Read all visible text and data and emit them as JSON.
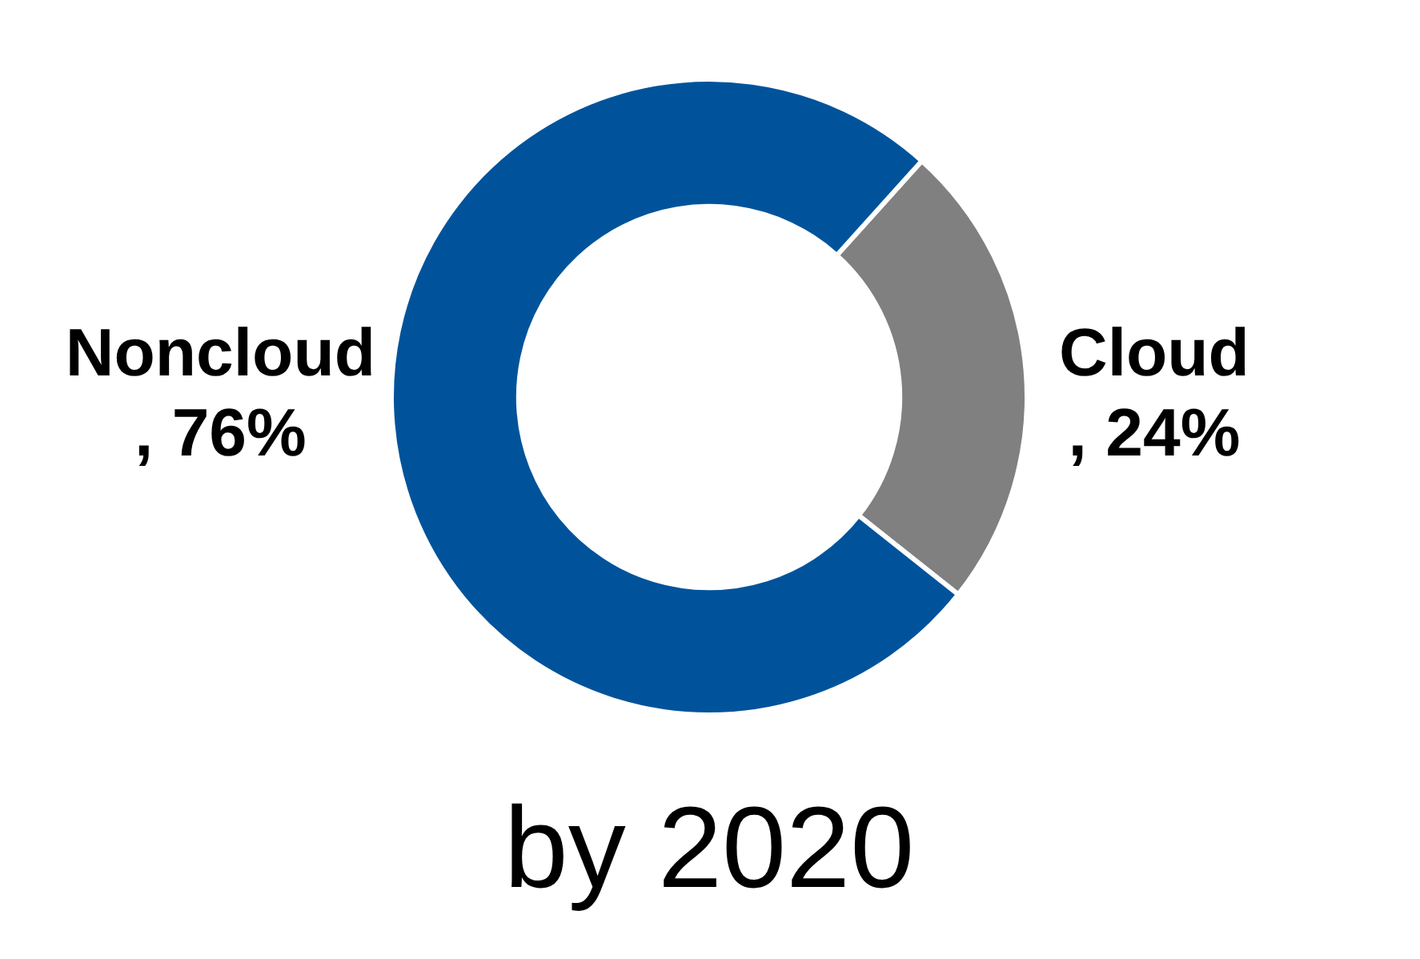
{
  "chart_data": {
    "type": "donut",
    "title": "by 2020",
    "categories": [
      "Cloud",
      "Noncloud"
    ],
    "values": [
      24,
      76
    ],
    "colors": [
      "#808080",
      "#00539b"
    ],
    "value_labels": [
      ", 24%",
      ", 76%"
    ],
    "legend": false
  }
}
